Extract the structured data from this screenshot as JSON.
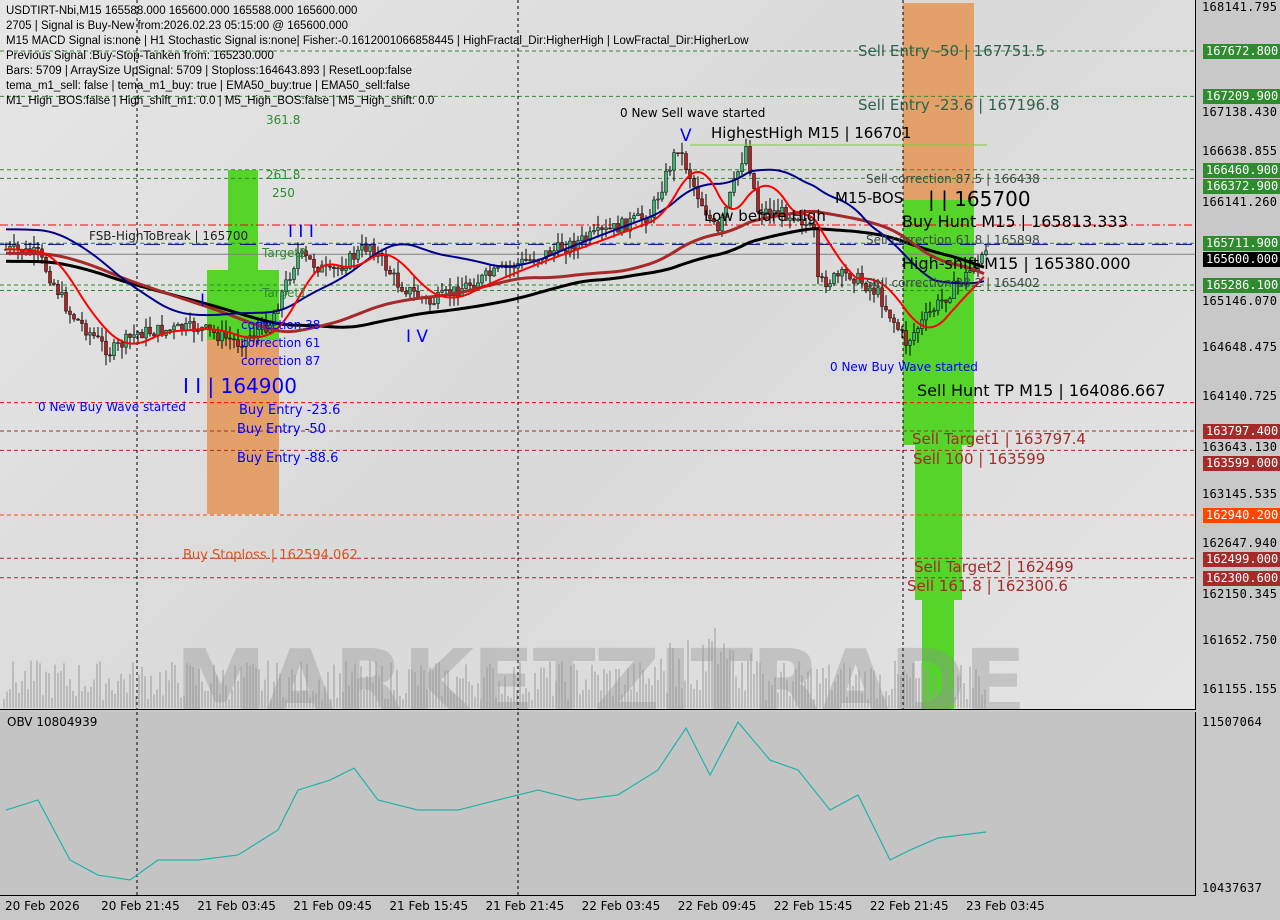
{
  "info_lines": [
    "USDTIRT-Nbi,M15  165588.000 165600.000 165588.000 165600.000",
    "2705 | Signal is Buy-New from:2026.02.23 05:15:00 @ 165600.000",
    "M15 MACD Signal is:none | H1 Stochastic Signal is:none| Fisher:-0.1612001066858445 | HighFractal_Dir:HigherHigh | LowFractal_Dir:HigherLow",
    "Previous Signal :Buy-Stop-Tanken from: 165230.000",
    "Bars: 5709 | ArraySize UpSignal: 5709 | Stoploss:164643.893 | ResetLoop:false",
    "tema_m1_sell: false | tema_m1_buy: true | EMA50_buy:true | EMA50_sell:false",
    "M1_High_BOS:false | High_shift_m1: 0.0 | M5_High_BOS:false | M5_High_shift: 0.0"
  ],
  "watermark": "MARKETZITRADE",
  "chart_labels": {
    "sell_entry_50": "Sell Entry -50 | 167751.5",
    "sell_entry_236": "Sell Entry -23.6 | 167196.8",
    "new_sell_wave": "0 New Sell wave started",
    "highest_high": "HighestHigh   M15 | 166701",
    "sell_corr_875": "Sell correction 87.5 | 166438",
    "low_before_high": "Low before High",
    "m15_bos": "M15-BOS",
    "buy_hunt": "Buy Hunt M15 | 165813.333",
    "hunt_value": "| | 165700",
    "sell_corr_618": "Sell correction 61.8 | 165898",
    "high_shift": "High-shift M15 | 165380.000",
    "sell_corr_38": "Sell correction 38.2 | 165402",
    "new_buy_wave_right": "0 New Buy Wave started",
    "sell_hunt_tp": "Sell Hunt TP M15 | 164086.667",
    "sell_target1": "Sell Target1 | 163797.4",
    "sell_100": "Sell 100 | 163599",
    "sell_target2": "Sell Target2 | 162499",
    "sell_1618": "Sell 161.8 | 162300.6",
    "fsb": "FSB-HighToBreak | 165700",
    "target2": "Target2",
    "target1": "Target1",
    "fib_3618": "361.8",
    "fib_2618": "261.8",
    "fib_250": "250",
    "wave_iii": "I I I",
    "wave_i": "I",
    "wave_iv": "I V",
    "wave_v": "V",
    "wave_ii": "I I | 164900",
    "corr_38": "correction 38",
    "corr_61": "correction 61",
    "corr_87": "correction 87",
    "new_buy_wave_left": "0 New Buy Wave started",
    "buy_entry_236": "Buy Entry -23.6",
    "buy_entry_50": "Buy Entry -50",
    "buy_entry_886": "Buy Entry -88.6",
    "buy_stoploss": "Buy Stoploss | 162594.062"
  },
  "price_axis": {
    "ticks": [
      "168141.795",
      "167138.430",
      "166638.855",
      "166141.260",
      "165146.070",
      "164648.475",
      "164140.725",
      "163643.130",
      "163145.535",
      "162647.940",
      "162150.345",
      "161652.750",
      "161155.155"
    ],
    "tags": [
      {
        "value": "167672.800",
        "color": "#2e8b2e"
      },
      {
        "value": "167209.900",
        "color": "#2e8b2e"
      },
      {
        "value": "166460.900",
        "color": "#2e8b2e"
      },
      {
        "value": "166372.900",
        "color": "#2e8b2e"
      },
      {
        "value": "165711.900",
        "color": "#2e8b2e"
      },
      {
        "value": "165600.000",
        "color": "#000000"
      },
      {
        "value": "165286.100",
        "color": "#2e8b2e"
      },
      {
        "value": "163797.400",
        "color": "#a52a2a"
      },
      {
        "value": "163599.000",
        "color": "#a52a2a"
      },
      {
        "value": "162940.200",
        "color": "#ff4500"
      },
      {
        "value": "162499.000",
        "color": "#a52a2a"
      },
      {
        "value": "162300.600",
        "color": "#a52a2a"
      }
    ]
  },
  "levels": [
    {
      "price": 167672.8,
      "color": "#2e8b2e",
      "style": "dash"
    },
    {
      "price": 167209.9,
      "color": "#2e8b2e",
      "style": "dash"
    },
    {
      "price": 166460.9,
      "color": "#2e8b2e",
      "style": "dash"
    },
    {
      "price": 166372.9,
      "color": "#2e8b2e",
      "style": "dash"
    },
    {
      "price": 165898,
      "color": "#ff0000",
      "style": "dashdot"
    },
    {
      "price": 165711.9,
      "color": "#2e8b2e",
      "style": "dash"
    },
    {
      "price": 165700,
      "color": "#00008b",
      "style": "longdash"
    },
    {
      "price": 165600,
      "color": "#808080",
      "style": "solid"
    },
    {
      "price": 165286.1,
      "color": "#2e8b2e",
      "style": "dash"
    },
    {
      "price": 165230,
      "color": "#2e8b2e",
      "style": "dash"
    },
    {
      "price": 164086.667,
      "color": "#ff0000",
      "style": "dash"
    },
    {
      "price": 163797.4,
      "color": "#a52a2a",
      "style": "dash"
    },
    {
      "price": 163599,
      "color": "#a52a2a",
      "style": "dash"
    },
    {
      "price": 162940.2,
      "color": "#ff4500",
      "style": "dash"
    },
    {
      "price": 162499,
      "color": "#a52a2a",
      "style": "dash"
    },
    {
      "price": 162300.6,
      "color": "#a52a2a",
      "style": "dash"
    }
  ],
  "obv": {
    "label": "OBV 10804939",
    "max_tick": "11507064",
    "min_tick": "10437637"
  },
  "date_labels": [
    "20 Feb 2026",
    "20 Feb 21:45",
    "21 Feb 03:45",
    "21 Feb 09:45",
    "21 Feb 15:45",
    "21 Feb 21:45",
    "22 Feb 03:45",
    "22 Feb 09:45",
    "22 Feb 15:45",
    "22 Feb 21:45",
    "23 Feb 03:45"
  ],
  "chart_data": [
    {
      "type": "line",
      "title": "USDTIRT-Nbi,M15",
      "ylim": [
        161155.155,
        168141.795
      ],
      "grid": false,
      "x": [
        "20 Feb 16:00",
        "20 Feb 18:00",
        "20 Feb 20:00",
        "20 Feb 22:30",
        "21 Feb 00:15",
        "21 Feb 04:00",
        "21 Feb 06:30",
        "21 Feb 08:30",
        "21 Feb 10:15",
        "21 Feb 12:15",
        "21 Feb 14:45",
        "21 Feb 16:30",
        "21 Feb 18:30",
        "21 Feb 21:00",
        "22 Feb 00:00",
        "22 Feb 02:30",
        "22 Feb 05:00",
        "22 Feb 08:15",
        "22 Feb 10:00",
        "22 Feb 11:15",
        "22 Feb 12:30",
        "22 Feb 14:15",
        "22 Feb 15:00",
        "22 Feb 17:30",
        "22 Feb 18:30",
        "22 Feb 18:45",
        "22 Feb 20:45",
        "22 Feb 22:30",
        "23 Feb 00:15",
        "23 Feb 01:45",
        "23 Feb 03:30",
        "23 Feb 05:15"
      ],
      "values": [
        165650,
        165600,
        165000,
        164600,
        164800,
        164850,
        164700,
        164900,
        165600,
        165400,
        165700,
        165300,
        165100,
        165300,
        165500,
        165650,
        165800,
        166000,
        166700,
        166200,
        165800,
        166700,
        166050,
        166000,
        165800,
        165300,
        165400,
        165200,
        164700,
        165000,
        165300,
        165600
      ]
    },
    {
      "type": "line",
      "title": "OBV 10804939",
      "ylim": [
        10437637,
        11507064
      ],
      "x": [
        "20 Feb 16:00",
        "20 Feb 18:00",
        "20 Feb 20:00",
        "20 Feb 21:45",
        "20 Feb 23:45",
        "21 Feb 01:30",
        "21 Feb 04:00",
        "21 Feb 06:30",
        "21 Feb 09:00",
        "21 Feb 10:15",
        "21 Feb 12:15",
        "21 Feb 13:45",
        "21 Feb 15:15",
        "21 Feb 17:45",
        "21 Feb 20:15",
        "21 Feb 22:45",
        "22 Feb 01:15",
        "22 Feb 03:45",
        "22 Feb 06:15",
        "22 Feb 08:45",
        "22 Feb 10:30",
        "22 Feb 12:00",
        "22 Feb 13:45",
        "22 Feb 15:45",
        "22 Feb 17:30",
        "22 Feb 19:30",
        "22 Feb 21:15",
        "22 Feb 23:15",
        "23 Feb 00:30",
        "23 Feb 02:15",
        "23 Feb 05:15"
      ],
      "values": [
        10934000,
        10998000,
        10616000,
        10520000,
        10489000,
        10616000,
        10616000,
        10648000,
        10807000,
        11061000,
        11125000,
        11201000,
        10998000,
        10934000,
        10934000,
        10998000,
        11061000,
        10998000,
        11030000,
        11189000,
        11456000,
        11157000,
        11494000,
        11252000,
        11189000,
        10934000,
        11030000,
        10616000,
        10679000,
        10756000,
        10794000
      ]
    }
  ]
}
